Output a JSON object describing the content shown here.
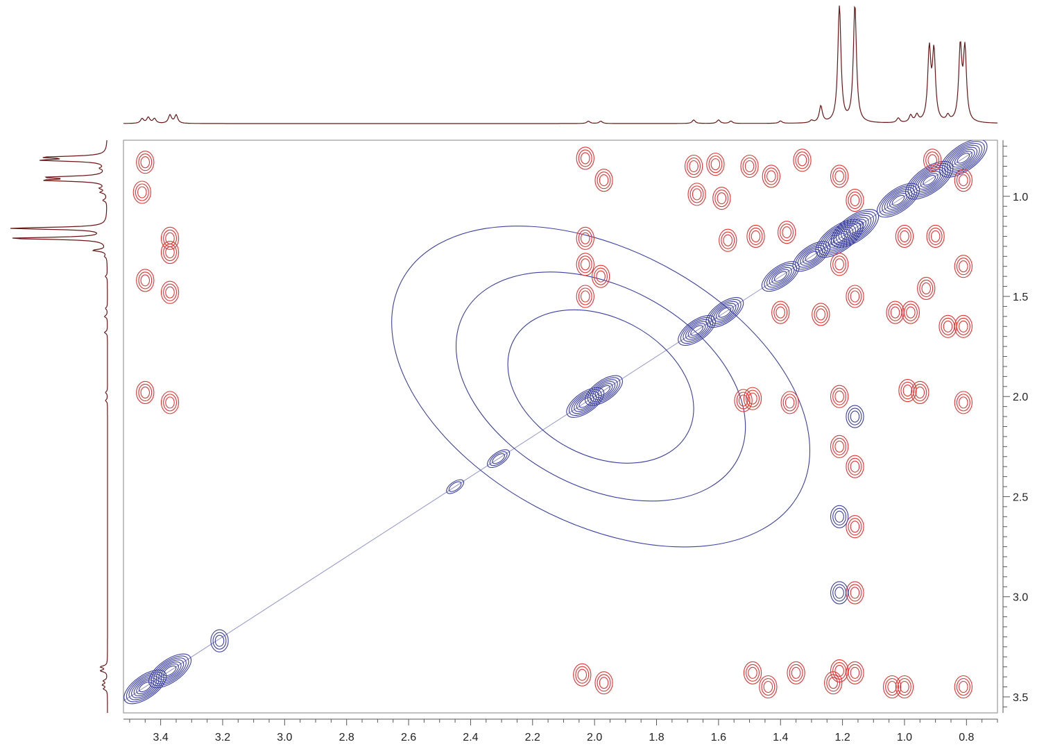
{
  "chart_data": {
    "type": "heatmap",
    "title": "",
    "xlabel": "",
    "ylabel": "",
    "xlim": [
      3.52,
      0.7
    ],
    "ylim": [
      0.72,
      3.58
    ],
    "x_axis_position": "bottom",
    "y_axis_position": "right",
    "x_ticks": [
      "3.4",
      "3.2",
      "3.0",
      "2.8",
      "2.6",
      "2.4",
      "2.2",
      "2.0",
      "1.8",
      "1.6",
      "1.4",
      "1.2",
      "1.0",
      "0.8"
    ],
    "y_ticks": [
      "1.0",
      "1.5",
      "2.0",
      "2.5",
      "3.0",
      "3.5"
    ],
    "grid": false,
    "colors": {
      "positive": "#3b3fa0",
      "negative": "#e0342f",
      "projection": "#6b1414",
      "frame": "#9a9a9a"
    },
    "projection_1d": {
      "peaks": [
        {
          "ppm": 3.46,
          "intensity": 0.04
        },
        {
          "ppm": 3.44,
          "intensity": 0.05
        },
        {
          "ppm": 3.42,
          "intensity": 0.04
        },
        {
          "ppm": 3.37,
          "intensity": 0.07
        },
        {
          "ppm": 3.35,
          "intensity": 0.07
        },
        {
          "ppm": 2.02,
          "intensity": 0.02
        },
        {
          "ppm": 1.98,
          "intensity": 0.02
        },
        {
          "ppm": 1.68,
          "intensity": 0.03
        },
        {
          "ppm": 1.6,
          "intensity": 0.03
        },
        {
          "ppm": 1.56,
          "intensity": 0.02
        },
        {
          "ppm": 1.4,
          "intensity": 0.02
        },
        {
          "ppm": 1.3,
          "intensity": 0.02
        },
        {
          "ppm": 1.27,
          "intensity": 0.14
        },
        {
          "ppm": 1.21,
          "intensity": 1.0
        },
        {
          "ppm": 1.16,
          "intensity": 1.0
        },
        {
          "ppm": 1.02,
          "intensity": 0.04
        },
        {
          "ppm": 0.98,
          "intensity": 0.06
        },
        {
          "ppm": 0.96,
          "intensity": 0.06
        },
        {
          "ppm": 0.92,
          "intensity": 0.6
        },
        {
          "ppm": 0.905,
          "intensity": 0.58
        },
        {
          "ppm": 0.86,
          "intensity": 0.05
        },
        {
          "ppm": 0.82,
          "intensity": 0.62
        },
        {
          "ppm": 0.805,
          "intensity": 0.6
        }
      ]
    },
    "diagonal_peaks": [
      {
        "x": 3.45,
        "y": 3.45,
        "sign": "positive",
        "levels": 7
      },
      {
        "x": 3.37,
        "y": 3.37,
        "sign": "positive",
        "levels": 7
      },
      {
        "x": 2.45,
        "y": 2.45,
        "sign": "positive",
        "levels": 2
      },
      {
        "x": 2.31,
        "y": 2.31,
        "sign": "positive",
        "levels": 3
      },
      {
        "x": 2.03,
        "y": 2.03,
        "sign": "positive",
        "levels": 6
      },
      {
        "x": 1.97,
        "y": 1.97,
        "sign": "positive",
        "levels": 6
      },
      {
        "x": 1.67,
        "y": 1.67,
        "sign": "positive",
        "levels": 6
      },
      {
        "x": 1.58,
        "y": 1.58,
        "sign": "positive",
        "levels": 6
      },
      {
        "x": 1.4,
        "y": 1.4,
        "sign": "positive",
        "levels": 6
      },
      {
        "x": 1.3,
        "y": 1.3,
        "sign": "positive",
        "levels": 6
      },
      {
        "x": 1.21,
        "y": 1.21,
        "sign": "positive",
        "levels": 8
      },
      {
        "x": 1.16,
        "y": 1.16,
        "sign": "positive",
        "levels": 8
      },
      {
        "x": 1.02,
        "y": 1.02,
        "sign": "positive",
        "levels": 7
      },
      {
        "x": 0.92,
        "y": 0.92,
        "sign": "positive",
        "levels": 8
      },
      {
        "x": 0.81,
        "y": 0.81,
        "sign": "positive",
        "levels": 8
      }
    ],
    "cross_peaks": [
      {
        "x": 3.45,
        "y": 0.83,
        "sign": "negative"
      },
      {
        "x": 3.46,
        "y": 0.98,
        "sign": "negative"
      },
      {
        "x": 3.37,
        "y": 1.21,
        "sign": "negative"
      },
      {
        "x": 3.37,
        "y": 1.28,
        "sign": "negative"
      },
      {
        "x": 3.37,
        "y": 1.48,
        "sign": "negative"
      },
      {
        "x": 3.45,
        "y": 1.42,
        "sign": "negative"
      },
      {
        "x": 3.45,
        "y": 1.98,
        "sign": "negative"
      },
      {
        "x": 3.37,
        "y": 2.03,
        "sign": "negative"
      },
      {
        "x": 3.21,
        "y": 3.22,
        "sign": "positive"
      },
      {
        "x": 2.03,
        "y": 0.81,
        "sign": "negative"
      },
      {
        "x": 1.97,
        "y": 0.92,
        "sign": "negative"
      },
      {
        "x": 2.03,
        "y": 1.21,
        "sign": "negative"
      },
      {
        "x": 2.03,
        "y": 1.34,
        "sign": "negative"
      },
      {
        "x": 2.03,
        "y": 1.5,
        "sign": "negative"
      },
      {
        "x": 1.98,
        "y": 1.4,
        "sign": "negative"
      },
      {
        "x": 2.04,
        "y": 3.39,
        "sign": "negative"
      },
      {
        "x": 1.97,
        "y": 3.43,
        "sign": "negative"
      },
      {
        "x": 1.68,
        "y": 0.85,
        "sign": "negative"
      },
      {
        "x": 1.67,
        "y": 0.99,
        "sign": "negative"
      },
      {
        "x": 1.61,
        "y": 0.84,
        "sign": "negative"
      },
      {
        "x": 1.59,
        "y": 1.01,
        "sign": "negative"
      },
      {
        "x": 1.5,
        "y": 0.85,
        "sign": "negative"
      },
      {
        "x": 1.43,
        "y": 0.9,
        "sign": "negative"
      },
      {
        "x": 1.33,
        "y": 0.82,
        "sign": "negative"
      },
      {
        "x": 1.57,
        "y": 1.22,
        "sign": "negative"
      },
      {
        "x": 1.48,
        "y": 1.2,
        "sign": "negative"
      },
      {
        "x": 1.38,
        "y": 1.18,
        "sign": "negative"
      },
      {
        "x": 1.4,
        "y": 1.58,
        "sign": "negative"
      },
      {
        "x": 1.27,
        "y": 1.59,
        "sign": "negative"
      },
      {
        "x": 1.21,
        "y": 0.9,
        "sign": "negative"
      },
      {
        "x": 1.16,
        "y": 1.02,
        "sign": "negative"
      },
      {
        "x": 1.21,
        "y": 1.34,
        "sign": "negative"
      },
      {
        "x": 1.16,
        "y": 1.5,
        "sign": "negative"
      },
      {
        "x": 1.21,
        "y": 2.0,
        "sign": "negative"
      },
      {
        "x": 1.21,
        "y": 2.25,
        "sign": "negative"
      },
      {
        "x": 1.16,
        "y": 2.35,
        "sign": "negative"
      },
      {
        "x": 1.16,
        "y": 2.65,
        "sign": "negative"
      },
      {
        "x": 1.16,
        "y": 2.98,
        "sign": "negative"
      },
      {
        "x": 1.21,
        "y": 2.6,
        "sign": "positive"
      },
      {
        "x": 1.21,
        "y": 2.98,
        "sign": "positive"
      },
      {
        "x": 1.16,
        "y": 2.1,
        "sign": "positive"
      },
      {
        "x": 1.21,
        "y": 3.37,
        "sign": "negative"
      },
      {
        "x": 1.16,
        "y": 3.38,
        "sign": "negative"
      },
      {
        "x": 1.23,
        "y": 3.43,
        "sign": "negative"
      },
      {
        "x": 1.49,
        "y": 2.01,
        "sign": "negative"
      },
      {
        "x": 1.52,
        "y": 2.02,
        "sign": "negative"
      },
      {
        "x": 1.37,
        "y": 2.03,
        "sign": "negative"
      },
      {
        "x": 1.49,
        "y": 3.38,
        "sign": "negative"
      },
      {
        "x": 1.35,
        "y": 3.38,
        "sign": "negative"
      },
      {
        "x": 1.44,
        "y": 3.45,
        "sign": "negative"
      },
      {
        "x": 1.03,
        "y": 1.58,
        "sign": "negative"
      },
      {
        "x": 0.98,
        "y": 1.58,
        "sign": "negative"
      },
      {
        "x": 0.93,
        "y": 1.46,
        "sign": "negative"
      },
      {
        "x": 0.86,
        "y": 1.65,
        "sign": "negative"
      },
      {
        "x": 0.81,
        "y": 1.65,
        "sign": "negative"
      },
      {
        "x": 0.81,
        "y": 1.35,
        "sign": "negative"
      },
      {
        "x": 0.9,
        "y": 1.2,
        "sign": "negative"
      },
      {
        "x": 1.0,
        "y": 1.2,
        "sign": "negative"
      },
      {
        "x": 0.99,
        "y": 1.97,
        "sign": "negative"
      },
      {
        "x": 0.95,
        "y": 1.98,
        "sign": "negative"
      },
      {
        "x": 0.81,
        "y": 2.03,
        "sign": "negative"
      },
      {
        "x": 1.04,
        "y": 3.45,
        "sign": "negative"
      },
      {
        "x": 1.0,
        "y": 3.45,
        "sign": "negative"
      },
      {
        "x": 0.81,
        "y": 3.45,
        "sign": "negative"
      },
      {
        "x": 0.91,
        "y": 0.82,
        "sign": "negative"
      },
      {
        "x": 0.81,
        "y": 0.92,
        "sign": "negative"
      }
    ]
  }
}
